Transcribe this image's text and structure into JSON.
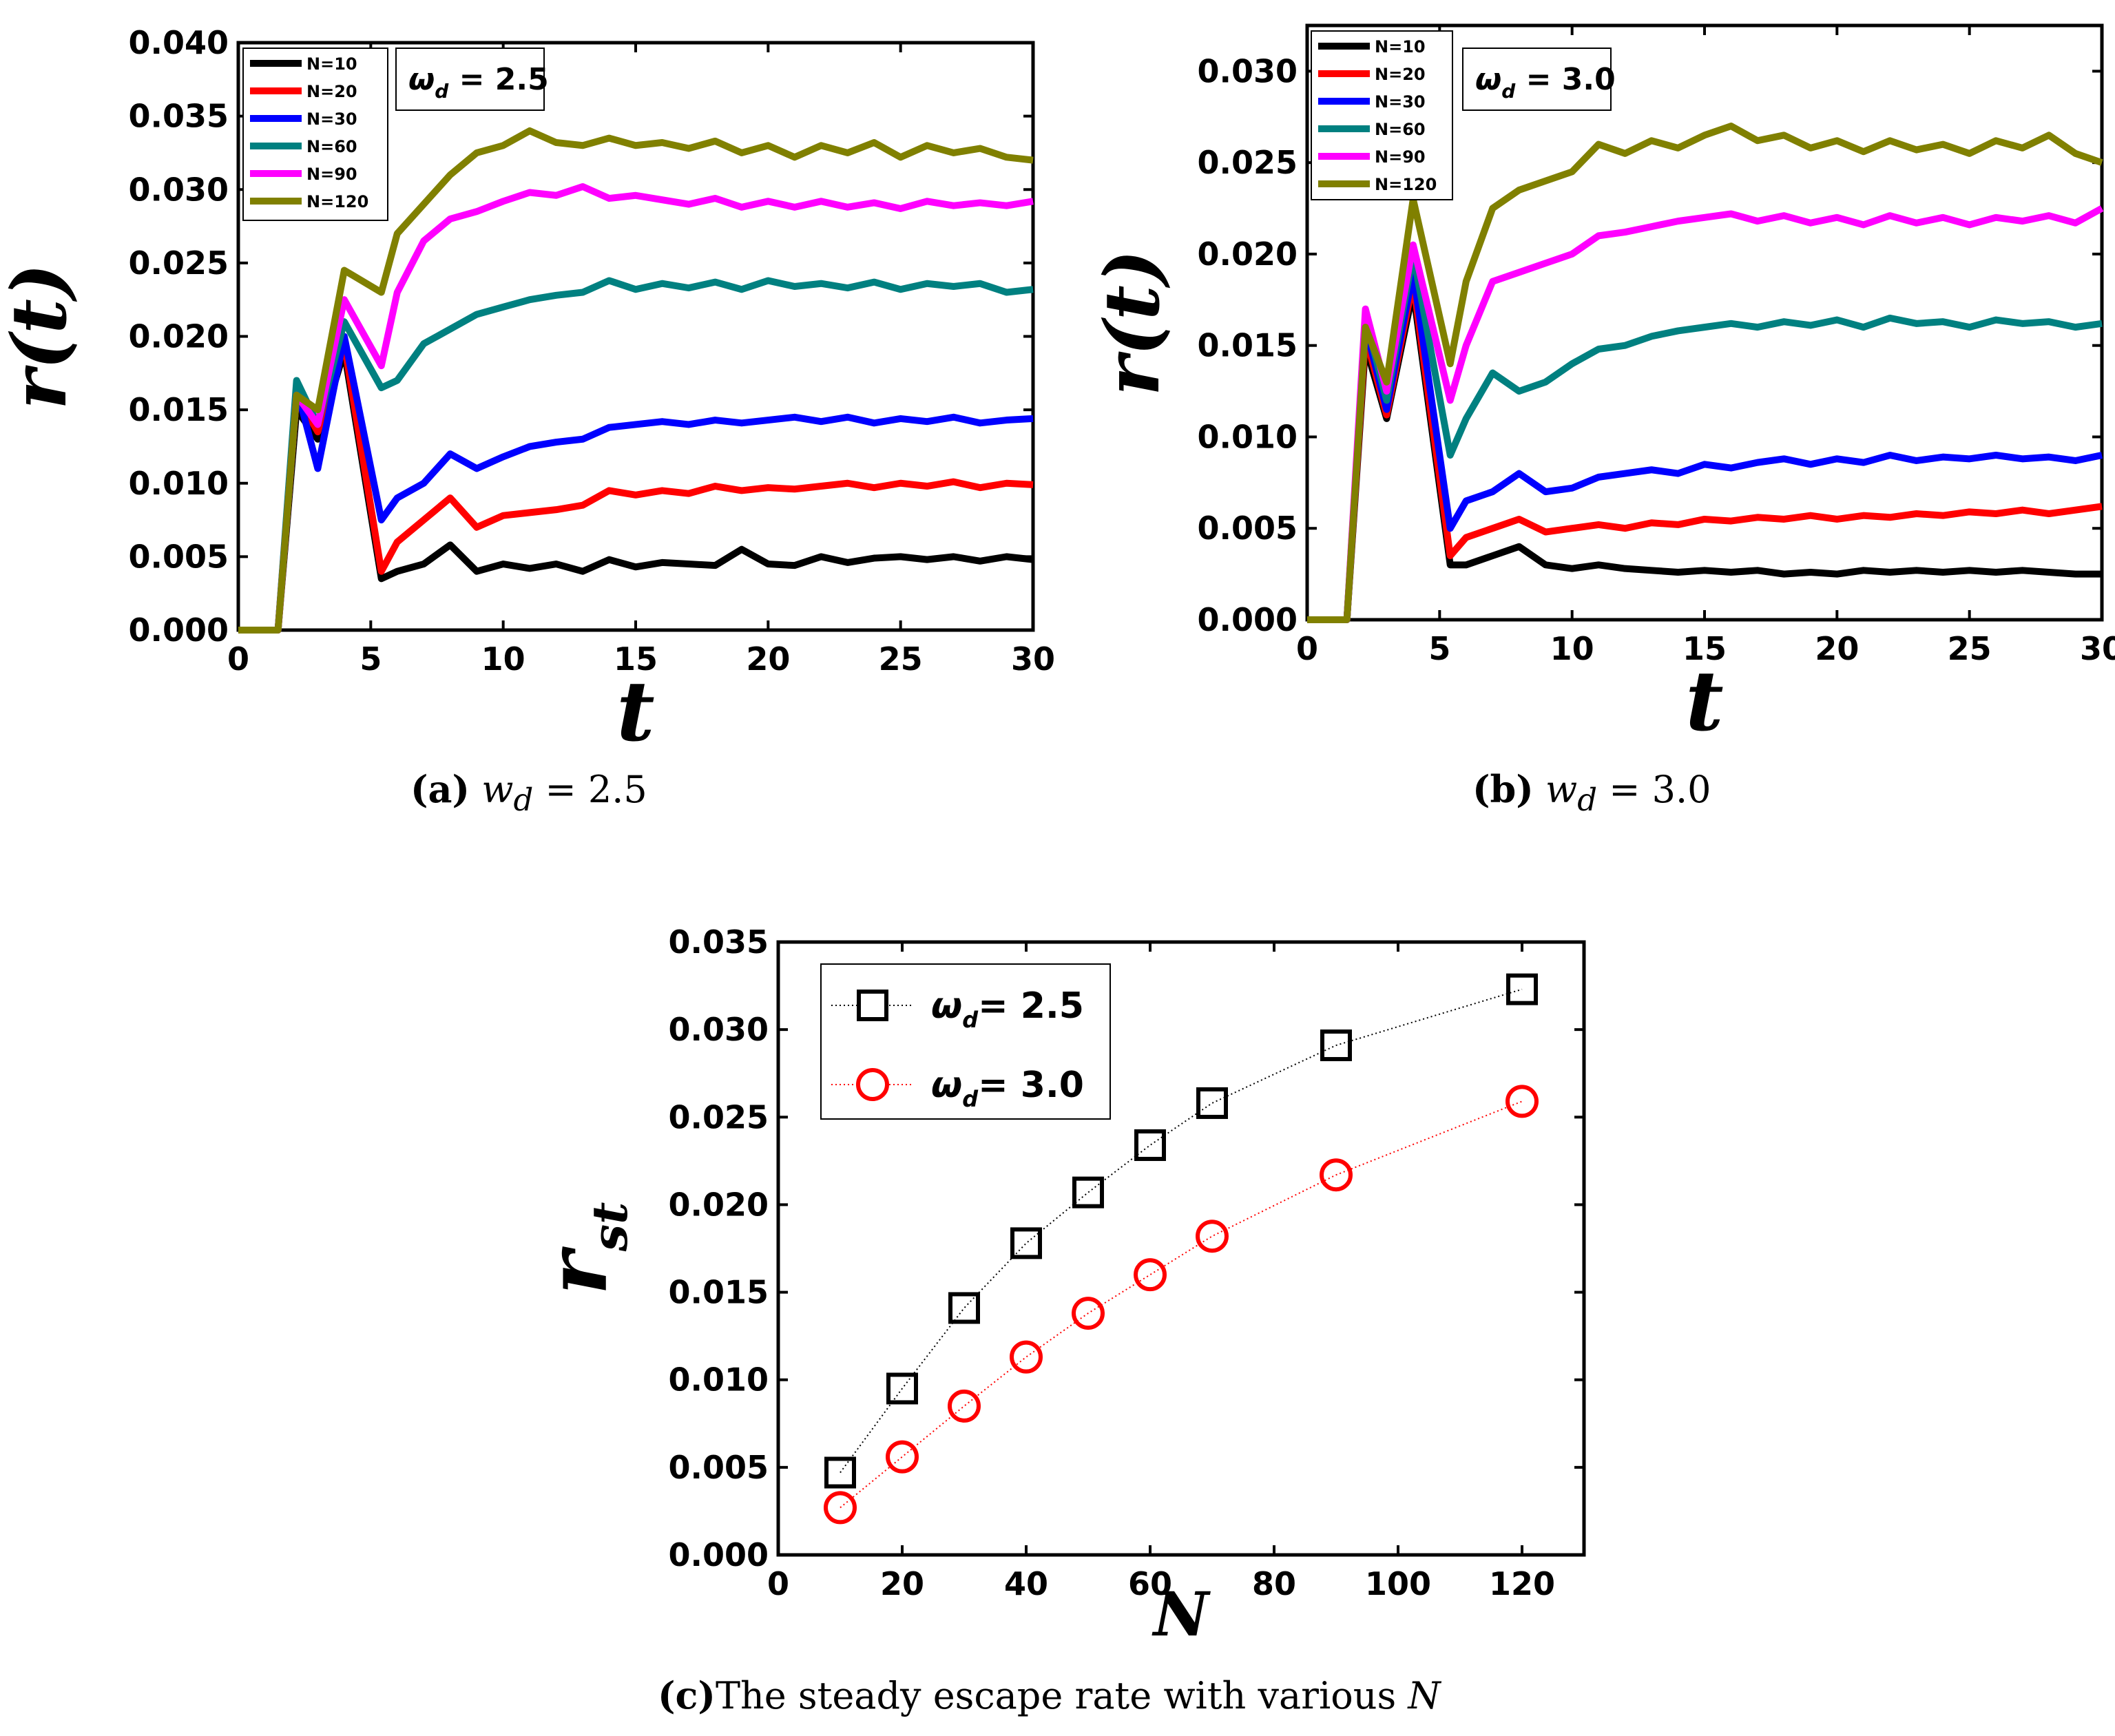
{
  "colors": {
    "N=10": "#000000",
    "N=20": "#ff0000",
    "N=30": "#0000ff",
    "N=60": "#008080",
    "N=90": "#ff00ff",
    "N=120": "#808000",
    "square": "#000000",
    "circle": "#ff0000"
  },
  "captions": {
    "a": {
      "label": "(a)",
      "text": "w",
      "sub": "d",
      "eq": "= 2.5"
    },
    "b": {
      "label": "(b)",
      "text": "w",
      "sub": "d",
      "eq": "= 3.0"
    },
    "c": {
      "label": "(c)",
      "text": "The steady escape rate with various ",
      "var": "N"
    }
  },
  "chart_data": [
    {
      "id": "a",
      "type": "line",
      "title": "",
      "xlabel": "t",
      "ylabel": "r(t)",
      "annotation": {
        "symbol": "ω",
        "sub": "d",
        "rest": " = 2.5"
      },
      "xlim": [
        0,
        30
      ],
      "ylim": [
        0,
        0.04
      ],
      "xticks": [
        "0",
        "5",
        "10",
        "15",
        "20",
        "25",
        "30"
      ],
      "yticks": [
        "0.000",
        "0.005",
        "0.010",
        "0.015",
        "0.020",
        "0.025",
        "0.030",
        "0.035",
        "0.040"
      ],
      "legend_position": "top-left",
      "x": [
        0,
        1.5,
        2.2,
        3.0,
        4.0,
        5.4,
        6.0,
        7.0,
        8.0,
        9.0,
        10.0,
        11.0,
        12.0,
        13.0,
        14.0,
        15.0,
        16.0,
        17.0,
        18.0,
        19.0,
        20.0,
        21.0,
        22.0,
        23.0,
        24.0,
        25.0,
        26.0,
        27.0,
        28.0,
        29.0,
        30.0
      ],
      "series": [
        {
          "name": "N=10",
          "values": [
            0,
            0,
            0.015,
            0.013,
            0.019,
            0.0035,
            0.004,
            0.0045,
            0.0058,
            0.004,
            0.0045,
            0.0042,
            0.0045,
            0.004,
            0.0048,
            0.0043,
            0.0046,
            0.0045,
            0.0044,
            0.0055,
            0.0045,
            0.0044,
            0.005,
            0.0046,
            0.0049,
            0.005,
            0.0048,
            0.005,
            0.0047,
            0.005,
            0.0048
          ]
        },
        {
          "name": "N=20",
          "values": [
            0,
            0,
            0.016,
            0.0135,
            0.0195,
            0.004,
            0.006,
            0.0075,
            0.009,
            0.007,
            0.0078,
            0.008,
            0.0082,
            0.0085,
            0.0095,
            0.0092,
            0.0095,
            0.0093,
            0.0098,
            0.0095,
            0.0097,
            0.0096,
            0.0098,
            0.01,
            0.0097,
            0.01,
            0.0098,
            0.0101,
            0.0097,
            0.01,
            0.0099
          ]
        },
        {
          "name": "N=30",
          "values": [
            0,
            0,
            0.0165,
            0.011,
            0.02,
            0.0075,
            0.009,
            0.01,
            0.012,
            0.011,
            0.0118,
            0.0125,
            0.0128,
            0.013,
            0.0138,
            0.014,
            0.0142,
            0.014,
            0.0143,
            0.0141,
            0.0143,
            0.0145,
            0.0142,
            0.0145,
            0.0141,
            0.0144,
            0.0142,
            0.0145,
            0.0141,
            0.0143,
            0.0144
          ]
        },
        {
          "name": "N=60",
          "values": [
            0,
            0,
            0.017,
            0.014,
            0.021,
            0.0165,
            0.017,
            0.0195,
            0.0205,
            0.0215,
            0.022,
            0.0225,
            0.0228,
            0.023,
            0.0238,
            0.0232,
            0.0236,
            0.0233,
            0.0237,
            0.0232,
            0.0238,
            0.0234,
            0.0236,
            0.0233,
            0.0237,
            0.0232,
            0.0236,
            0.0234,
            0.0236,
            0.023,
            0.0232
          ]
        },
        {
          "name": "N=90",
          "values": [
            0,
            0,
            0.016,
            0.014,
            0.0225,
            0.018,
            0.023,
            0.0265,
            0.028,
            0.0285,
            0.0292,
            0.0298,
            0.0296,
            0.0302,
            0.0294,
            0.0296,
            0.0293,
            0.029,
            0.0294,
            0.0288,
            0.0292,
            0.0288,
            0.0292,
            0.0288,
            0.0291,
            0.0287,
            0.0292,
            0.0289,
            0.0291,
            0.0289,
            0.0292
          ]
        },
        {
          "name": "N=120",
          "values": [
            0,
            0,
            0.016,
            0.015,
            0.0245,
            0.023,
            0.027,
            0.029,
            0.031,
            0.0325,
            0.033,
            0.034,
            0.0332,
            0.033,
            0.0335,
            0.033,
            0.0332,
            0.0328,
            0.0333,
            0.0325,
            0.033,
            0.0322,
            0.033,
            0.0325,
            0.0332,
            0.0322,
            0.033,
            0.0325,
            0.0328,
            0.0322,
            0.032
          ]
        }
      ]
    },
    {
      "id": "b",
      "type": "line",
      "title": "",
      "xlabel": "t",
      "ylabel": "r(t)",
      "annotation": {
        "symbol": "ω",
        "sub": "d",
        "rest": " = 3.0"
      },
      "xlim": [
        0,
        30
      ],
      "ylim": [
        0,
        0.0325
      ],
      "xticks": [
        "0",
        "5",
        "10",
        "15",
        "20",
        "25",
        "30"
      ],
      "yticks": [
        "0.000",
        "0.005",
        "0.010",
        "0.015",
        "0.020",
        "0.025",
        "0.030"
      ],
      "legend_position": "top-left",
      "x": [
        0,
        1.5,
        2.2,
        3.0,
        4.0,
        5.4,
        6.0,
        7.0,
        8.0,
        9.0,
        10.0,
        11.0,
        12.0,
        13.0,
        14.0,
        15.0,
        16.0,
        17.0,
        18.0,
        19.0,
        20.0,
        21.0,
        22.0,
        23.0,
        24.0,
        25.0,
        26.0,
        27.0,
        28.0,
        29.0,
        30.0
      ],
      "series": [
        {
          "name": "N=10",
          "values": [
            0,
            0,
            0.015,
            0.011,
            0.018,
            0.003,
            0.003,
            0.0035,
            0.004,
            0.003,
            0.0028,
            0.003,
            0.0028,
            0.0027,
            0.0026,
            0.0027,
            0.0026,
            0.0027,
            0.0025,
            0.0026,
            0.0025,
            0.0027,
            0.0026,
            0.0027,
            0.0026,
            0.0027,
            0.0026,
            0.0027,
            0.0026,
            0.0025,
            0.0025
          ]
        },
        {
          "name": "N=20",
          "values": [
            0,
            0,
            0.0155,
            0.0112,
            0.0185,
            0.0035,
            0.0045,
            0.005,
            0.0055,
            0.0048,
            0.005,
            0.0052,
            0.005,
            0.0053,
            0.0052,
            0.0055,
            0.0054,
            0.0056,
            0.0055,
            0.0057,
            0.0055,
            0.0057,
            0.0056,
            0.0058,
            0.0057,
            0.0059,
            0.0058,
            0.006,
            0.0058,
            0.006,
            0.0062
          ]
        },
        {
          "name": "N=30",
          "values": [
            0,
            0,
            0.016,
            0.0115,
            0.019,
            0.005,
            0.0065,
            0.007,
            0.008,
            0.007,
            0.0072,
            0.0078,
            0.008,
            0.0082,
            0.008,
            0.0085,
            0.0083,
            0.0086,
            0.0088,
            0.0085,
            0.0088,
            0.0086,
            0.009,
            0.0087,
            0.0089,
            0.0088,
            0.009,
            0.0088,
            0.0089,
            0.0087,
            0.009
          ]
        },
        {
          "name": "N=60",
          "values": [
            0,
            0,
            0.0165,
            0.012,
            0.02,
            0.009,
            0.011,
            0.0135,
            0.0125,
            0.013,
            0.014,
            0.0148,
            0.015,
            0.0155,
            0.0158,
            0.016,
            0.0162,
            0.016,
            0.0163,
            0.0161,
            0.0164,
            0.016,
            0.0165,
            0.0162,
            0.0163,
            0.016,
            0.0164,
            0.0162,
            0.0163,
            0.016,
            0.0162
          ]
        },
        {
          "name": "N=90",
          "values": [
            0,
            0,
            0.017,
            0.0125,
            0.0205,
            0.012,
            0.015,
            0.0185,
            0.019,
            0.0195,
            0.02,
            0.021,
            0.0212,
            0.0215,
            0.0218,
            0.022,
            0.0222,
            0.0218,
            0.0221,
            0.0217,
            0.022,
            0.0216,
            0.0221,
            0.0217,
            0.022,
            0.0216,
            0.022,
            0.0218,
            0.0221,
            0.0217,
            0.0225
          ]
        },
        {
          "name": "N=120",
          "values": [
            0,
            0,
            0.016,
            0.013,
            0.023,
            0.014,
            0.0185,
            0.0225,
            0.0235,
            0.024,
            0.0245,
            0.026,
            0.0255,
            0.0262,
            0.0258,
            0.0265,
            0.027,
            0.0262,
            0.0265,
            0.0258,
            0.0262,
            0.0256,
            0.0262,
            0.0257,
            0.026,
            0.0255,
            0.0262,
            0.0258,
            0.0265,
            0.0255,
            0.025
          ]
        }
      ]
    },
    {
      "id": "c",
      "type": "scatter",
      "title": "",
      "xlabel": "N",
      "ylabel": "r",
      "ylabel_sub": "st",
      "xlim": [
        0,
        130
      ],
      "ylim": [
        0,
        0.035
      ],
      "xticks": [
        "0",
        "20",
        "40",
        "60",
        "80",
        "100",
        "120"
      ],
      "yticks": [
        "0.000",
        "0.005",
        "0.010",
        "0.015",
        "0.020",
        "0.025",
        "0.030",
        "0.035"
      ],
      "legend_position": "top-left",
      "x": [
        10,
        20,
        30,
        40,
        50,
        60,
        70,
        90,
        120
      ],
      "series": [
        {
          "name": "2.5",
          "symbol": "ω",
          "sub": "d",
          "marker": "square",
          "values": [
            0.0047,
            0.0095,
            0.0141,
            0.0178,
            0.0207,
            0.0234,
            0.0258,
            0.0291,
            0.0323
          ]
        },
        {
          "name": "3.0",
          "symbol": "ω",
          "sub": "d",
          "marker": "circle",
          "values": [
            0.0027,
            0.0056,
            0.0085,
            0.0113,
            0.0138,
            0.016,
            0.0182,
            0.0217,
            0.0259
          ]
        }
      ]
    }
  ]
}
